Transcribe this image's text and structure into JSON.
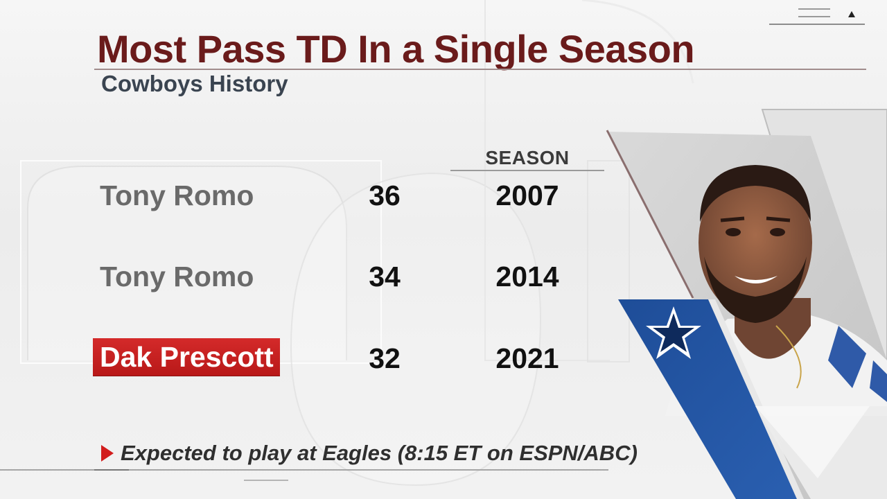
{
  "header": {
    "title": "Most Pass TD In a Single Season",
    "subtitle": "Cowboys History"
  },
  "table": {
    "column_header": "SEASON",
    "rows": [
      {
        "name": "Tony Romo",
        "td": "36",
        "season": "2007",
        "highlight": false
      },
      {
        "name": "Tony Romo",
        "td": "34",
        "season": "2014",
        "highlight": false
      },
      {
        "name": "Dak Prescott",
        "td": "32",
        "season": "2021",
        "highlight": true
      }
    ]
  },
  "footnote": {
    "text": "Expected to play at Eagles (8:15 ET on ESPN/ABC)"
  },
  "icons": {
    "footnote_bullet": "play-arrow-icon",
    "team_logo": "star-icon",
    "top_right": "triangle-up-icon"
  },
  "colors": {
    "title": "#6a1b1b",
    "highlight": "#c91f1f",
    "team_blue": "#1f4f9c",
    "arrow": "#d21d1d"
  }
}
